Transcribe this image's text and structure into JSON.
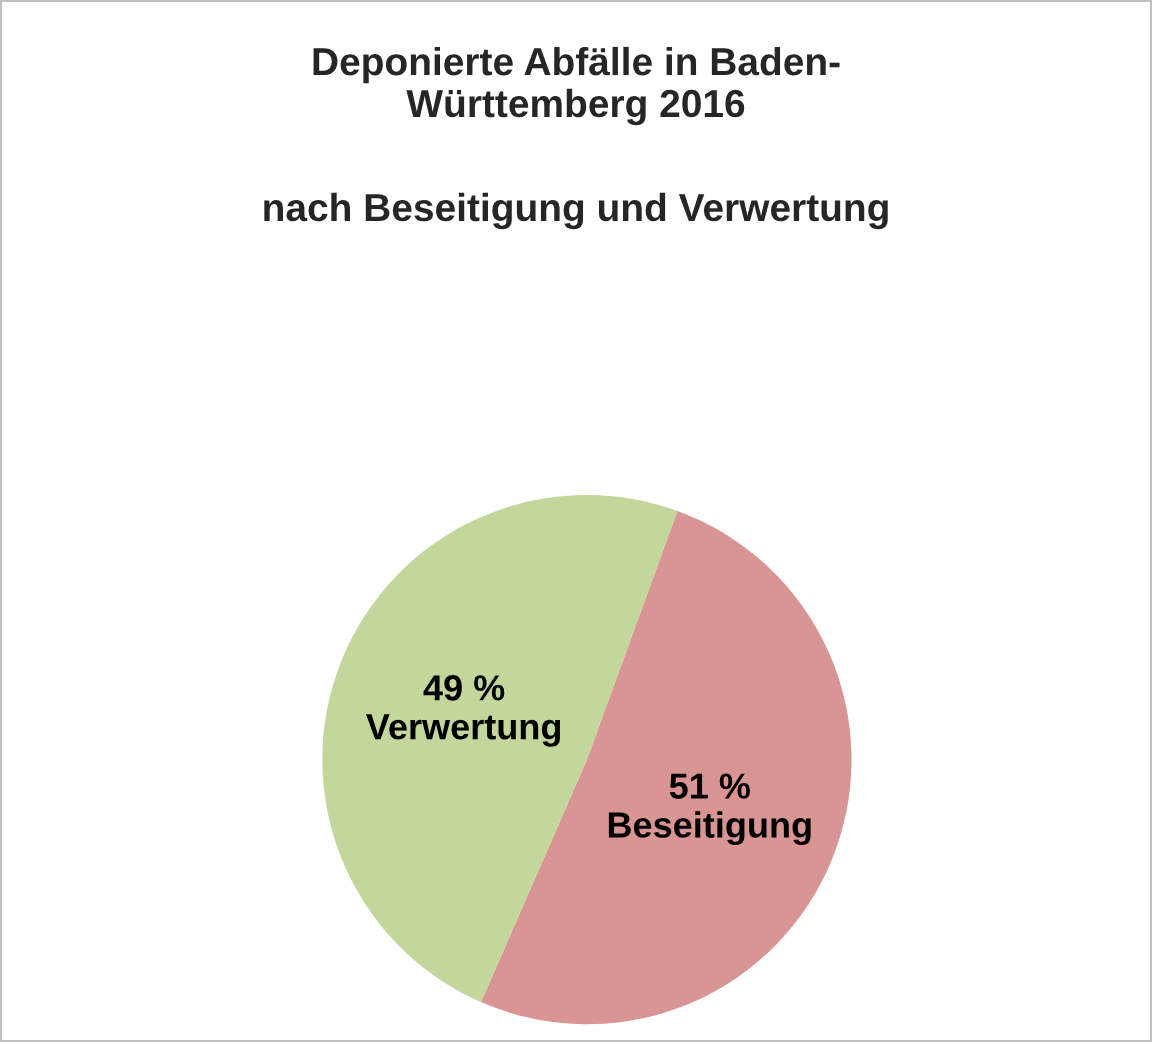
{
  "chart_data": {
    "type": "pie",
    "title": "Deponierte Abfälle in Baden-\nWürttemberg 2016",
    "subtitle": "nach Beseitigung und Verwertung",
    "categories": [
      "Beseitigung",
      "Verwertung"
    ],
    "values": [
      51,
      49
    ],
    "value_labels": [
      "51 %",
      "49 %"
    ],
    "colors": [
      "#d99594",
      "#c3d69b"
    ]
  }
}
